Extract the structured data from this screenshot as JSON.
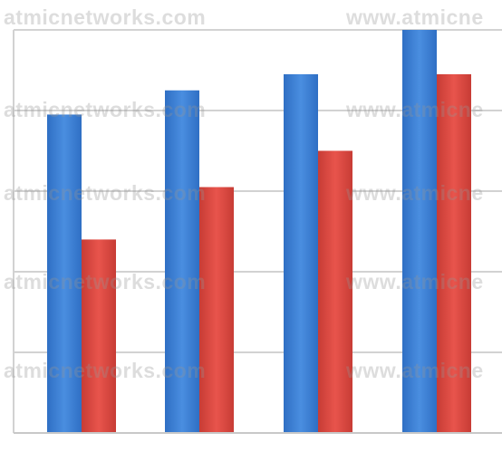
{
  "watermark": {
    "left_text": "atmicnetworks.com",
    "right_text": "www.atmicne"
  },
  "colors": {
    "series_a": "#4a8ee0",
    "series_a_dark": "#2f6fc4",
    "series_b": "#e8544c",
    "series_b_dark": "#c73c35",
    "grid": "#d2d2d2",
    "axis": "#c8c8c8"
  },
  "chart_data": {
    "type": "bar",
    "title": "",
    "xlabel": "",
    "ylabel": "",
    "categories": [
      "",
      "",
      "",
      ""
    ],
    "series": [
      {
        "values": [
          79,
          85,
          89,
          100
        ]
      },
      {
        "values": [
          48,
          61,
          70,
          89
        ]
      }
    ],
    "ylim": [
      0,
      100
    ],
    "grid": true,
    "legend": "none"
  }
}
